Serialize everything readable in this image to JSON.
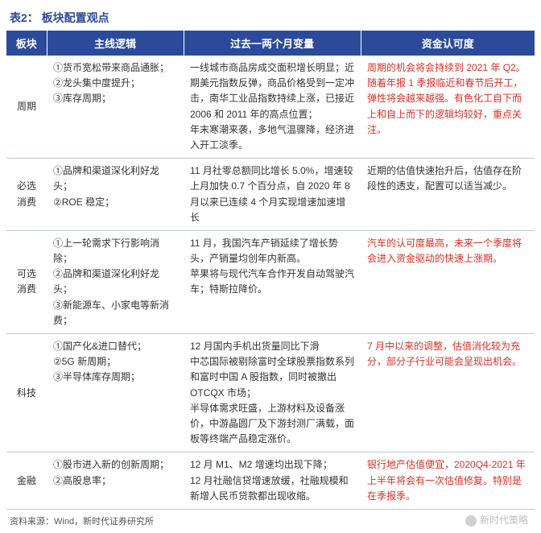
{
  "title": "表2：  板块配置观点",
  "columns": [
    "板块",
    "主线逻辑",
    "过去一两个月变量",
    "资金认可度"
  ],
  "col_widths": [
    "50px",
    "170px",
    "220px",
    "216px"
  ],
  "header_bg": "#2b4a9b",
  "header_fg": "#ffffff",
  "row_border": "#b8c5e0",
  "accent_color": "#d93025",
  "font_size_body": 12,
  "font_size_header": 13,
  "rows": [
    {
      "sector": "周期",
      "logic": "①货币宽松带来商品通胀；\n②龙头集中度提升；\n③库存周期；",
      "change": "一线城市商品房成交面积增长明显；近期美元指数反弹，商品价格受到一定冲击，南华工业品指数持续上涨，已接近 2006 和 2011 年的高点位置；\n年末寒潮来袭，多地气温骤降，经济进入开工淡季。",
      "capital": "周期的机会将会持续到 2021 年 Q2。随着年报 1 季报临近和春节后开工，弹性将会越来越强。有色化工自下而上和自上而下的逻辑均较好，重点关注。",
      "capital_red": true
    },
    {
      "sector": "必选消费",
      "logic": "①品牌和渠道深化利好龙头；\n②ROE 稳定；",
      "change": "11 月社零总额同比增长 5.0%，增速较上月加快 0.7 个百分点，自 2020 年 8 月以来已连续 4 个月实现增速加速增长",
      "capital": "近期的估值快速抬升后，估值存在阶段性的透支，配置可以适当减少。",
      "capital_red": false
    },
    {
      "sector": "可选消费",
      "logic": "①上一轮需求下行影响消除；\n②品牌和渠道深化利好龙头；\n③新能源车、小家电等新消费；",
      "change": "11 月，我国汽车产销延续了增长势头，产销量均创年内新高。\n苹果将与现代汽车合作开发自动驾驶汽车；特斯拉降价。",
      "capital": "汽车的认可度最高，未来一个季度将会进入资金驱动的快速上涨期。",
      "capital_red": true
    },
    {
      "sector": "科技",
      "logic": "①国产化&进口替代；\n②5G 新周期；\n③半导体库存周期；",
      "change": "12 月国内手机出货量同比下滑\n中芯国际被剔除富时全球股票指数系列和富时中国 A 股指数，同时被撤出 OTCQX 市场；\n半导体需求旺盛，上游材料及设备涨价，中游晶圆厂及下游封测厂满载，面板等终端产品稳定涨价。",
      "capital": "7 月中以来的调整，估值消化较为充分，部分子行业可能会呈现出机会。",
      "capital_red": true
    },
    {
      "sector": "金融",
      "logic": "①股市进入新的创新周期；\n②高股息率；",
      "change": "12 月 M1、M2 增速均出现下降；\n12 月社融信贷增速放缓，社融规模和新增人民币贷款都出现收缩。",
      "capital": "银行地产估值便宜，2020Q4-2021 年上半年将会有一次估值修复。特别是在季报季。",
      "capital_red": true
    }
  ],
  "source": "资料来源：Wind，新时代证券研究所",
  "watermark": "新时代策略"
}
